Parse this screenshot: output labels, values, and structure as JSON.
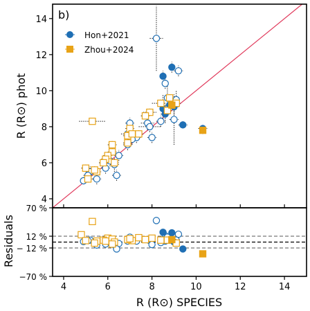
{
  "panel_label": "b)",
  "colors": {
    "hon": "#1f6fb4",
    "zhou": "#e8a317",
    "identity_line": "#e0385a",
    "ref_line": "#555555",
    "zero_line": "#000000"
  },
  "chart_data": [
    {
      "type": "scatter",
      "ylabel": "R (R⊙) phot",
      "xlim": [
        3.5,
        15
      ],
      "ylim": [
        3.5,
        14.8
      ],
      "yticks": [
        4,
        6,
        8,
        10,
        12,
        14
      ],
      "yticklabels": [
        "4",
        "6",
        "8",
        "10",
        "12",
        "14"
      ],
      "legend": {
        "placement": "top-left",
        "entries": [
          "Hon+2021",
          "Zhou+2024"
        ]
      },
      "identity_line": true,
      "series": [
        {
          "name": "Hon+2021",
          "marker": "circle",
          "filled": [
            [
              8.5,
              10.8
            ],
            [
              8.9,
              11.3
            ],
            [
              8.5,
              9.0
            ],
            [
              8.6,
              8.7
            ],
            [
              8.8,
              9.2
            ],
            [
              9.0,
              9.1
            ],
            [
              9.4,
              8.1
            ],
            [
              10.3,
              7.9
            ]
          ],
          "filled_err": [
            [
              0.1,
              0.3
            ],
            [
              0.15,
              0.3
            ],
            [
              0.15,
              0.8
            ],
            [
              0.2,
              0.5
            ],
            [
              0.2,
              0.5
            ],
            [
              0.2,
              0.4
            ],
            [
              0.2,
              0.2
            ],
            [
              0.2,
              0.2
            ]
          ],
          "open": [
            [
              8.2,
              12.9
            ],
            [
              9.2,
              11.1
            ],
            [
              8.6,
              10.4
            ],
            [
              9.1,
              9.5
            ],
            [
              8.7,
              9.6
            ],
            [
              7.0,
              8.2
            ],
            [
              7.8,
              8.2
            ],
            [
              9.0,
              8.4
            ],
            [
              7.9,
              8.0
            ],
            [
              8.0,
              7.4
            ],
            [
              6.9,
              7.6
            ],
            [
              7.3,
              7.4
            ],
            [
              7.1,
              7.3
            ],
            [
              6.9,
              7.0
            ],
            [
              6.5,
              6.4
            ],
            [
              6.3,
              5.9
            ],
            [
              6.1,
              6.1
            ],
            [
              5.9,
              5.7
            ],
            [
              5.5,
              5.1
            ],
            [
              5.2,
              5.5
            ],
            [
              5.1,
              5.3
            ],
            [
              6.4,
              5.3
            ],
            [
              4.9,
              5.0
            ],
            [
              8.4,
              8.3
            ]
          ],
          "open_err": [
            [
              0.3,
              1.8
            ],
            [
              0.2,
              0.3
            ],
            [
              0.1,
              0.3
            ],
            [
              0.1,
              0.5
            ],
            [
              0.15,
              0.8
            ],
            [
              0.2,
              0.3
            ],
            [
              0.3,
              0.4
            ],
            [
              0.2,
              1.4
            ],
            [
              0.5,
              0.3
            ],
            [
              0.2,
              0.3
            ],
            [
              0.3,
              0.3
            ],
            [
              0.2,
              0.3
            ],
            [
              0.2,
              0.3
            ],
            [
              0.2,
              0.3
            ],
            [
              0.2,
              0.3
            ],
            [
              0.2,
              0.4
            ],
            [
              0.2,
              0.3
            ],
            [
              0.2,
              0.3
            ],
            [
              0.2,
              0.3
            ],
            [
              0.2,
              0.3
            ],
            [
              0.2,
              0.3
            ],
            [
              0.2,
              0.3
            ],
            [
              0.1,
              0.2
            ],
            [
              0.2,
              0.3
            ]
          ]
        },
        {
          "name": "Zhou+2024",
          "marker": "square",
          "filled": [
            [
              8.9,
              9.2
            ],
            [
              10.3,
              7.8
            ]
          ],
          "filled_err": [
            [
              0.1,
              0.2
            ],
            [
              0.1,
              0.2
            ]
          ],
          "open": [
            [
              5.3,
              8.3
            ],
            [
              8.8,
              9.6
            ],
            [
              9.1,
              9.3
            ],
            [
              8.4,
              9.3
            ],
            [
              8.7,
              8.9
            ],
            [
              7.9,
              8.8
            ],
            [
              7.7,
              8.6
            ],
            [
              7.0,
              7.9
            ],
            [
              6.9,
              7.5
            ],
            [
              6.9,
              7.1
            ],
            [
              7.1,
              7.6
            ],
            [
              6.2,
              7.0
            ],
            [
              6.2,
              6.6
            ],
            [
              6.0,
              6.4
            ],
            [
              6.3,
              6.0
            ],
            [
              5.9,
              6.2
            ],
            [
              5.8,
              6.0
            ],
            [
              5.5,
              5.5
            ],
            [
              5.0,
              5.7
            ],
            [
              5.1,
              5.1
            ],
            [
              7.4,
              7.6
            ],
            [
              5.4,
              5.6
            ]
          ],
          "open_err": [
            [
              0.6,
              0.1
            ],
            [
              0.2,
              0.2
            ],
            [
              0.2,
              0.2
            ],
            [
              0.4,
              0.2
            ],
            [
              0.2,
              0.2
            ],
            [
              0.3,
              0.2
            ],
            [
              0.2,
              0.2
            ],
            [
              0.2,
              0.2
            ],
            [
              0.2,
              0.2
            ],
            [
              0.2,
              0.2
            ],
            [
              0.2,
              0.2
            ],
            [
              0.2,
              0.2
            ],
            [
              0.2,
              0.2
            ],
            [
              0.2,
              0.2
            ],
            [
              0.2,
              0.2
            ],
            [
              0.2,
              0.2
            ],
            [
              0.2,
              0.2
            ],
            [
              0.2,
              0.2
            ],
            [
              0.2,
              0.2
            ],
            [
              0.2,
              0.2
            ],
            [
              0.2,
              0.2
            ],
            [
              0.2,
              0.2
            ]
          ]
        }
      ]
    },
    {
      "type": "scatter",
      "xlabel": "R (R⊙) SPECIES",
      "ylabel": "Residuals",
      "xlim": [
        3.5,
        15
      ],
      "ylim": [
        -70,
        70
      ],
      "xticks": [
        4,
        6,
        8,
        10,
        12,
        14
      ],
      "xticklabels": [
        "4",
        "6",
        "8",
        "10",
        "12",
        "14"
      ],
      "yticks": [
        70,
        12,
        -12,
        -70
      ],
      "yticklabels": [
        "70 %",
        "12 %",
        "− 12 %",
        "−70 %"
      ],
      "reference_lines": [
        12,
        -12
      ],
      "zero_line": 0,
      "series": [
        {
          "name": "Hon+2021",
          "marker": "circle",
          "filled": [
            [
              8.5,
              20
            ],
            [
              8.9,
              19
            ],
            [
              8.5,
              5
            ],
            [
              8.6,
              2
            ],
            [
              9.0,
              0
            ],
            [
              9.4,
              -14
            ],
            [
              8.8,
              4
            ]
          ],
          "open": [
            [
              8.2,
              44
            ],
            [
              9.2,
              16
            ],
            [
              8.6,
              13
            ],
            [
              7.0,
              10
            ],
            [
              7.9,
              3
            ],
            [
              8.0,
              -5
            ],
            [
              4.9,
              1
            ],
            [
              5.2,
              4
            ],
            [
              5.5,
              -6
            ],
            [
              5.9,
              -4
            ],
            [
              6.1,
              0
            ],
            [
              6.3,
              -6
            ],
            [
              6.5,
              -3
            ],
            [
              6.9,
              2
            ],
            [
              7.1,
              3
            ],
            [
              7.3,
              2
            ],
            [
              7.8,
              5
            ],
            [
              9.1,
              4
            ],
            [
              8.4,
              -1
            ],
            [
              6.4,
              -14
            ],
            [
              5.1,
              3
            ],
            [
              8.7,
              10
            ]
          ]
        },
        {
          "name": "Zhou+2024",
          "marker": "square",
          "filled": [
            [
              8.9,
              5
            ],
            [
              10.3,
              -24
            ]
          ],
          "open": [
            [
              5.3,
              42
            ],
            [
              4.8,
              15
            ],
            [
              7.4,
              9
            ],
            [
              6.0,
              8
            ],
            [
              6.2,
              6
            ],
            [
              5.8,
              4
            ],
            [
              5.5,
              2
            ],
            [
              7.1,
              3
            ],
            [
              7.7,
              5
            ],
            [
              5.0,
              3
            ],
            [
              6.9,
              5
            ],
            [
              8.0,
              8
            ],
            [
              8.7,
              4
            ],
            [
              9.1,
              -2
            ],
            [
              5.4,
              -2
            ],
            [
              6.3,
              0
            ],
            [
              5.9,
              2
            ],
            [
              7.0,
              7
            ],
            [
              8.4,
              4
            ],
            [
              6.2,
              -4
            ]
          ]
        }
      ]
    }
  ]
}
